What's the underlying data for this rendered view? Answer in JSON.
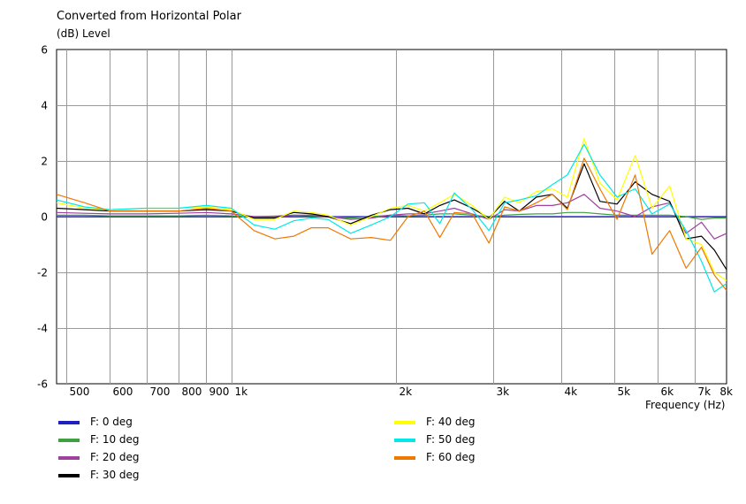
{
  "chart_data": {
    "type": "line",
    "title": "Converted from Horizontal Polar",
    "ylabel": "(dB)  Level",
    "xlabel": "Frequency  (Hz)",
    "x_scale": "log",
    "xlim": [
      480,
      8000
    ],
    "ylim": [
      -6,
      6
    ],
    "y_ticks": [
      6,
      4,
      2,
      0,
      -2,
      -4,
      -6
    ],
    "x_ticks": [
      {
        "value": 500,
        "label": "500"
      },
      {
        "value": 600,
        "label": "600"
      },
      {
        "value": 700,
        "label": "700"
      },
      {
        "value": 800,
        "label": "800"
      },
      {
        "value": 900,
        "label": "900"
      },
      {
        "value": 1000,
        "label": "1k"
      },
      {
        "value": 2000,
        "label": "2k"
      },
      {
        "value": 3000,
        "label": "3k"
      },
      {
        "value": 4000,
        "label": "4k"
      },
      {
        "value": 5000,
        "label": "5k"
      },
      {
        "value": 6000,
        "label": "6k"
      },
      {
        "value": 7000,
        "label": "7k"
      },
      {
        "value": 8000,
        "label": "8k"
      }
    ],
    "grid": true,
    "legend_position": "bottom",
    "x": [
      480,
      540,
      600,
      700,
      800,
      900,
      1000,
      1100,
      1200,
      1300,
      1400,
      1500,
      1650,
      1800,
      1950,
      2100,
      2250,
      2400,
      2550,
      2750,
      2950,
      3150,
      3350,
      3600,
      3850,
      4100,
      4400,
      4700,
      5050,
      5450,
      5850,
      6300,
      6750,
      7200,
      7600,
      8000
    ],
    "series": [
      {
        "name": "F: 0 deg",
        "color": "#2020c0",
        "values": [
          0,
          0,
          0,
          0,
          0,
          0,
          0,
          0,
          0,
          0,
          0,
          0,
          0,
          0,
          0,
          0,
          0,
          0,
          0,
          0,
          0,
          0,
          0,
          0,
          0,
          0,
          0,
          0,
          0,
          0,
          0,
          0,
          0,
          0,
          0,
          0
        ]
      },
      {
        "name": "F: 10 deg",
        "color": "#40a040",
        "values": [
          0.05,
          0.05,
          0.03,
          0.03,
          0.03,
          0.05,
          0.03,
          0.0,
          0.02,
          0.05,
          0.03,
          0.0,
          -0.05,
          0.0,
          0.05,
          0.03,
          0.05,
          0.1,
          0.1,
          0.05,
          0.0,
          0.05,
          0.08,
          0.1,
          0.1,
          0.15,
          0.15,
          0.1,
          0.05,
          0.05,
          0.05,
          0.05,
          0.0,
          -0.1,
          -0.05,
          -0.05
        ]
      },
      {
        "name": "F: 20 deg",
        "color": "#a040a0",
        "values": [
          0.15,
          0.12,
          0.1,
          0.1,
          0.12,
          0.15,
          0.1,
          0.0,
          0.0,
          0.05,
          0.05,
          0.0,
          -0.1,
          -0.05,
          0.05,
          0.1,
          0.1,
          0.2,
          0.3,
          0.1,
          -0.1,
          0.25,
          0.2,
          0.4,
          0.4,
          0.5,
          0.8,
          0.3,
          0.2,
          0.0,
          0.35,
          0.5,
          -0.6,
          -0.2,
          -0.8,
          -0.6
        ]
      },
      {
        "name": "F: 30 deg",
        "color": "#000000",
        "values": [
          0.3,
          0.25,
          0.2,
          0.2,
          0.2,
          0.25,
          0.2,
          -0.05,
          -0.05,
          0.15,
          0.1,
          0.0,
          -0.25,
          0.05,
          0.25,
          0.3,
          0.1,
          0.4,
          0.6,
          0.3,
          -0.05,
          0.55,
          0.2,
          0.7,
          0.8,
          0.3,
          1.9,
          0.55,
          0.45,
          1.25,
          0.8,
          0.55,
          -0.8,
          -0.7,
          -1.2,
          -1.9
        ]
      },
      {
        "name": "F: 40 deg",
        "color": "#ffff00",
        "values": [
          0.5,
          0.3,
          0.25,
          0.3,
          0.3,
          0.35,
          0.25,
          -0.1,
          -0.1,
          0.2,
          0.15,
          0.05,
          -0.3,
          0.0,
          0.3,
          0.4,
          0.2,
          0.5,
          0.8,
          0.4,
          -0.1,
          0.7,
          0.5,
          0.9,
          1.0,
          0.7,
          2.8,
          1.2,
          0.6,
          2.2,
          0.3,
          1.1,
          -0.8,
          -1.0,
          -2.0,
          -2.3
        ]
      },
      {
        "name": "F: 50 deg",
        "color": "#00e8e8",
        "values": [
          0.6,
          0.35,
          0.25,
          0.3,
          0.3,
          0.4,
          0.3,
          -0.3,
          -0.45,
          -0.15,
          -0.05,
          -0.1,
          -0.6,
          -0.3,
          0.0,
          0.45,
          0.5,
          -0.25,
          0.85,
          0.25,
          -0.5,
          0.5,
          0.6,
          0.75,
          1.15,
          1.5,
          2.6,
          1.5,
          0.7,
          1.0,
          0.1,
          0.45,
          -0.5,
          -1.6,
          -2.7,
          -2.4
        ]
      },
      {
        "name": "F: 60 deg",
        "color": "#f07800",
        "values": [
          0.8,
          0.5,
          0.2,
          0.2,
          0.2,
          0.3,
          0.2,
          -0.5,
          -0.8,
          -0.7,
          -0.4,
          -0.4,
          -0.8,
          -0.75,
          -0.85,
          0.0,
          0.2,
          -0.75,
          0.15,
          0.1,
          -0.95,
          0.35,
          0.2,
          0.5,
          0.8,
          0.25,
          2.1,
          1.0,
          -0.1,
          1.5,
          -1.35,
          -0.5,
          -1.85,
          -1.1,
          -2.1,
          -2.65
        ]
      }
    ]
  },
  "legend": {
    "items": [
      {
        "label": "F: 0 deg",
        "color": "#2020c0"
      },
      {
        "label": "F: 10 deg",
        "color": "#40a040"
      },
      {
        "label": "F: 20 deg",
        "color": "#a040a0"
      },
      {
        "label": "F: 30 deg",
        "color": "#000000"
      },
      {
        "label": "F: 40 deg",
        "color": "#ffff00"
      },
      {
        "label": "F: 50 deg",
        "color": "#00e8e8"
      },
      {
        "label": "F: 60 deg",
        "color": "#f07800"
      }
    ]
  }
}
